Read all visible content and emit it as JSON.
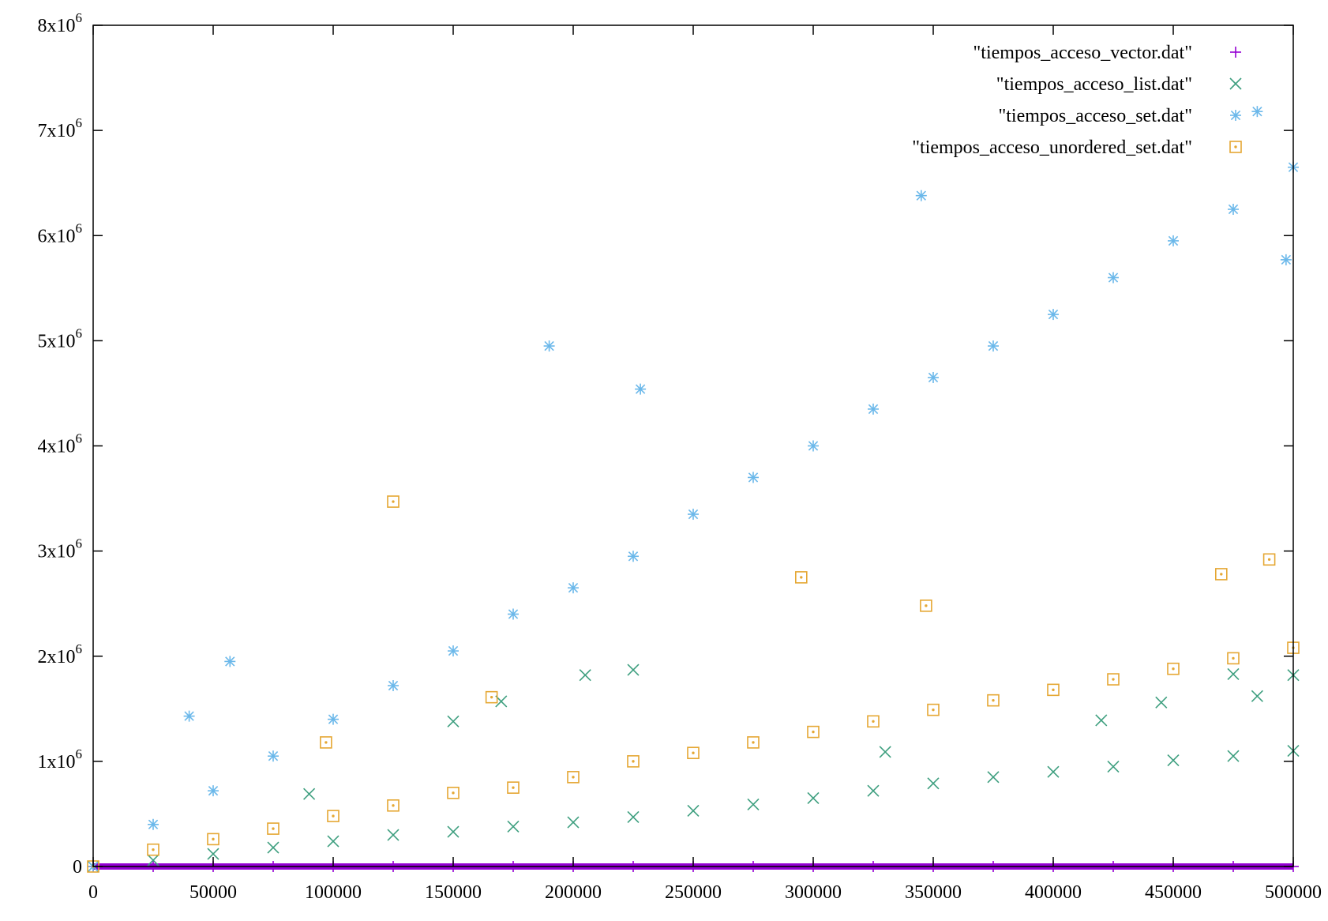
{
  "chart_data": {
    "type": "scatter",
    "title": "",
    "xlabel": "",
    "ylabel": "",
    "xlim": [
      0,
      500000
    ],
    "ylim": [
      0,
      8000000
    ],
    "x_ticks": [
      {
        "value": 0,
        "label": "0"
      },
      {
        "value": 50000,
        "label": "50000"
      },
      {
        "value": 100000,
        "label": "100000"
      },
      {
        "value": 150000,
        "label": "150000"
      },
      {
        "value": 200000,
        "label": "200000"
      },
      {
        "value": 250000,
        "label": "250000"
      },
      {
        "value": 300000,
        "label": "300000"
      },
      {
        "value": 350000,
        "label": "350000"
      },
      {
        "value": 400000,
        "label": "400000"
      },
      {
        "value": 450000,
        "label": "450000"
      },
      {
        "value": 500000,
        "label": "500000"
      }
    ],
    "y_ticks": [
      {
        "value": 0,
        "mantissa": "0",
        "exponent": ""
      },
      {
        "value": 1000000,
        "mantissa": "1x10",
        "exponent": "6"
      },
      {
        "value": 2000000,
        "mantissa": "2x10",
        "exponent": "6"
      },
      {
        "value": 3000000,
        "mantissa": "3x10",
        "exponent": "6"
      },
      {
        "value": 4000000,
        "mantissa": "4x10",
        "exponent": "6"
      },
      {
        "value": 5000000,
        "mantissa": "5x10",
        "exponent": "6"
      },
      {
        "value": 6000000,
        "mantissa": "6x10",
        "exponent": "6"
      },
      {
        "value": 7000000,
        "mantissa": "7x10",
        "exponent": "6"
      },
      {
        "value": 8000000,
        "mantissa": "8x10",
        "exponent": "6"
      }
    ],
    "grid": false,
    "legend_position": "top-right",
    "series": [
      {
        "name": "\"tiempos_acceso_vector.dat\"",
        "marker": "plus",
        "color": "#9400d3",
        "x": [
          0,
          25000,
          50000,
          75000,
          100000,
          125000,
          150000,
          175000,
          200000,
          225000,
          250000,
          275000,
          300000,
          325000,
          350000,
          375000,
          400000,
          425000,
          450000,
          475000,
          500000
        ],
        "y": [
          0,
          0,
          0,
          0,
          0,
          0,
          0,
          0,
          0,
          0,
          0,
          0,
          0,
          0,
          0,
          0,
          0,
          0,
          0,
          0,
          0
        ]
      },
      {
        "name": "\"tiempos_acceso_list.dat\"",
        "marker": "cross",
        "color": "#3e9f7f",
        "x": [
          0,
          25000,
          50000,
          75000,
          100000,
          125000,
          150000,
          175000,
          200000,
          225000,
          250000,
          275000,
          300000,
          325000,
          350000,
          375000,
          400000,
          425000,
          450000,
          475000,
          500000,
          90000,
          150000,
          170000,
          205000,
          225000,
          330000,
          420000,
          445000,
          475000,
          485000,
          500000
        ],
        "y": [
          0,
          60000,
          120000,
          180000,
          240000,
          300000,
          330000,
          380000,
          420000,
          470000,
          530000,
          590000,
          650000,
          720000,
          790000,
          850000,
          900000,
          950000,
          1010000,
          1050000,
          1100000,
          690000,
          1380000,
          1570000,
          1820000,
          1870000,
          1090000,
          1390000,
          1560000,
          1830000,
          1620000,
          1820000
        ]
      },
      {
        "name": "\"tiempos_acceso_set.dat\"",
        "marker": "star",
        "color": "#6bb8ea",
        "x": [
          0,
          25000,
          50000,
          75000,
          100000,
          125000,
          150000,
          175000,
          200000,
          225000,
          250000,
          275000,
          300000,
          325000,
          350000,
          375000,
          400000,
          425000,
          450000,
          475000,
          500000,
          40000,
          57000,
          190000,
          228000,
          345000,
          485000,
          497000
        ],
        "y": [
          0,
          400000,
          720000,
          1050000,
          1400000,
          1720000,
          2050000,
          2400000,
          2650000,
          2950000,
          3350000,
          3700000,
          4000000,
          4350000,
          4650000,
          4950000,
          5250000,
          5600000,
          5950000,
          6250000,
          6650000,
          1430000,
          1950000,
          4950000,
          4540000,
          6380000,
          7180000,
          5770000
        ]
      },
      {
        "name": "\"tiempos_acceso_unordered_set.dat\"",
        "marker": "square",
        "color": "#e5a733",
        "x": [
          0,
          25000,
          50000,
          75000,
          100000,
          125000,
          150000,
          175000,
          200000,
          225000,
          250000,
          275000,
          300000,
          325000,
          350000,
          375000,
          400000,
          425000,
          450000,
          475000,
          500000,
          97000,
          125000,
          166000,
          295000,
          347000,
          470000,
          490000
        ],
        "y": [
          0,
          160000,
          260000,
          360000,
          480000,
          580000,
          700000,
          750000,
          850000,
          1000000,
          1080000,
          1180000,
          1280000,
          1380000,
          1490000,
          1580000,
          1680000,
          1780000,
          1880000,
          1980000,
          2080000,
          1180000,
          3470000,
          1610000,
          2750000,
          2480000,
          2780000,
          2920000
        ]
      }
    ]
  }
}
